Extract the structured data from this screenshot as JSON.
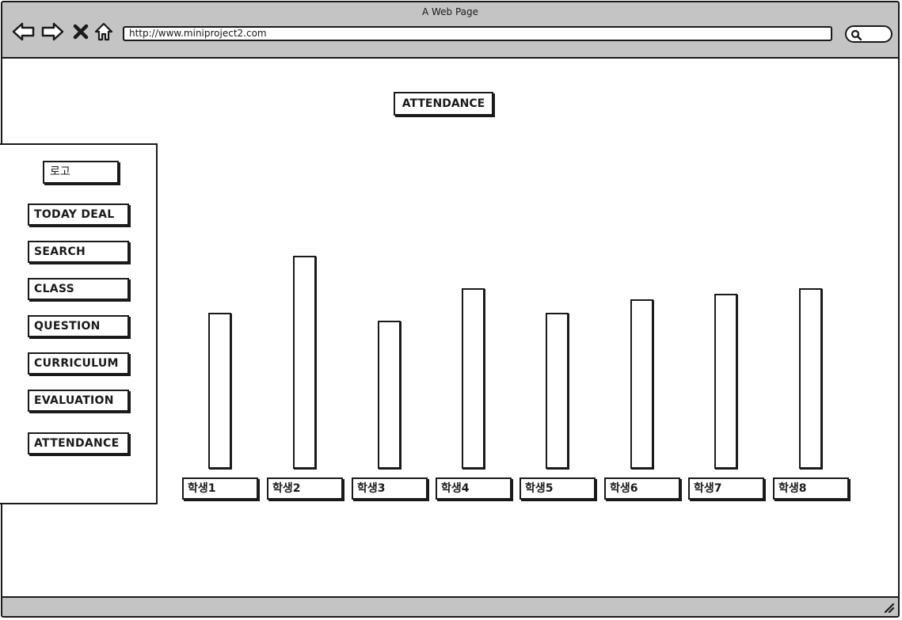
{
  "window": {
    "title": "A Web Page",
    "url": "http://www.miniproject2.com"
  },
  "icons": {
    "back": "back-arrow-icon",
    "forward": "forward-arrow-icon",
    "close": "close-icon",
    "home": "home-icon",
    "search": "search-icon",
    "resize": "resize-handle-icon"
  },
  "page": {
    "title": "ATTENDANCE"
  },
  "sidebar": {
    "logo": "로고",
    "items": [
      {
        "label": "TODAY DEAL"
      },
      {
        "label": "SEARCH"
      },
      {
        "label": "CLASS"
      },
      {
        "label": "QUESTION"
      },
      {
        "label": "CURRICULUM"
      },
      {
        "label": "EVALUATION"
      },
      {
        "label": "ATTENDANCE"
      }
    ]
  },
  "chart_data": {
    "type": "bar",
    "categories": [
      "학생1",
      "학생2",
      "학생3",
      "학생4",
      "학생5",
      "학생6",
      "학생7",
      "학생8"
    ],
    "values": [
      58,
      79,
      55,
      67,
      58,
      63,
      65,
      67
    ],
    "ylim": [
      0,
      100
    ]
  }
}
